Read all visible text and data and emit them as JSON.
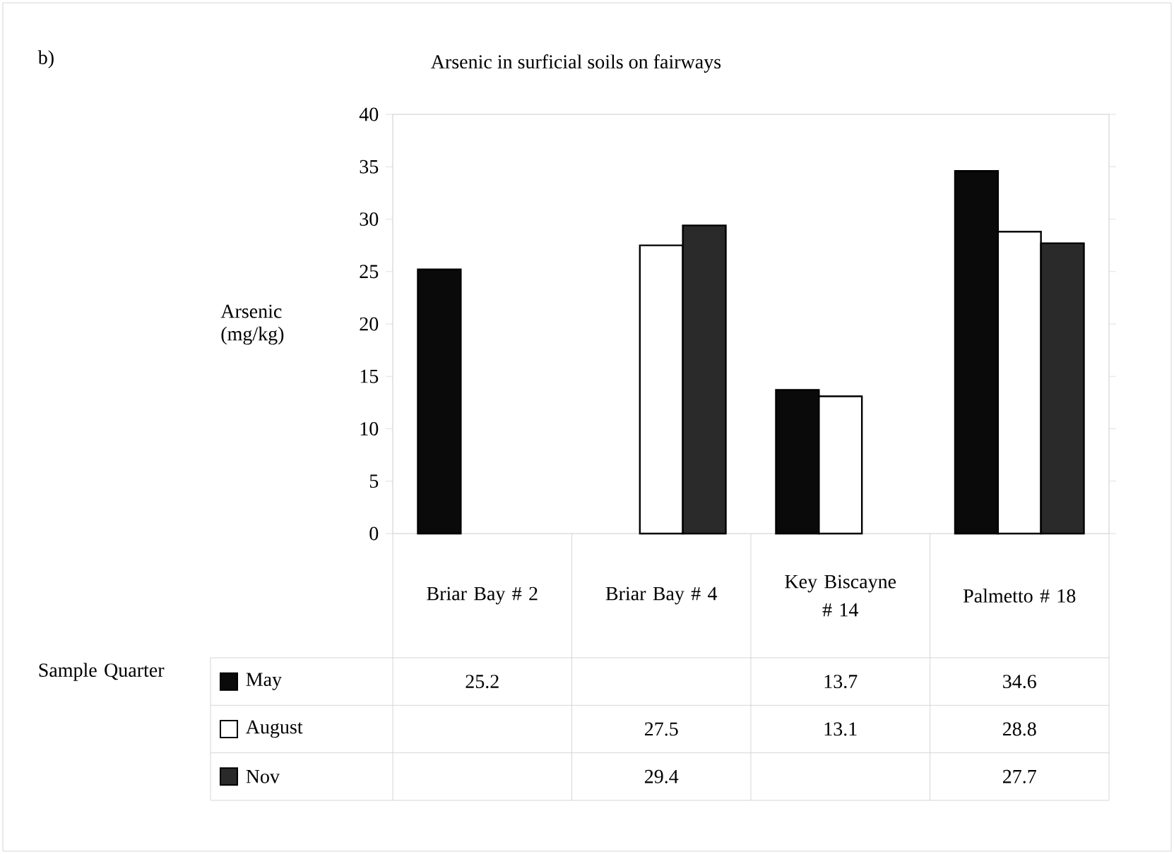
{
  "chart_data": {
    "type": "bar",
    "title": "Arsenic in surficial soils on fairways",
    "ylabel": "Arsenic (mg/kg)",
    "categories": [
      "Briar Bay # 2",
      "Briar Bay # 4",
      "Key Biscayne # 14",
      "Palmetto # 18"
    ],
    "series": [
      {
        "name": "May",
        "color": "#0a0a0a",
        "values": [
          25.2,
          null,
          13.7,
          34.6
        ]
      },
      {
        "name": "August",
        "color": "#ffffff",
        "values": [
          null,
          27.5,
          13.1,
          28.8
        ]
      },
      {
        "name": "Nov",
        "color": "#2a2a2a",
        "values": [
          null,
          29.4,
          null,
          27.7
        ]
      }
    ],
    "ylim": [
      0,
      40
    ],
    "yticks": [
      0,
      5,
      10,
      15,
      20,
      25,
      30,
      35,
      40
    ],
    "data_labels": true,
    "legend": "bottom left",
    "annotations": [
      "b)",
      "Sample Quarter"
    ]
  }
}
